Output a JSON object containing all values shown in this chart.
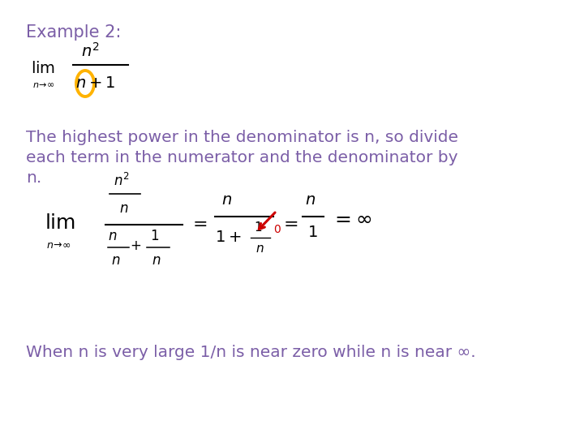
{
  "background_color": "#ffffff",
  "title_text": "Example 2:",
  "title_color": "#7B5EA7",
  "title_fontsize": 15,
  "body_color": "#7B5EA7",
  "math_color": "#000000",
  "body_fontsize": 14.5,
  "circle_color": "#FFB300",
  "arrow_color": "#CC0000",
  "body_text_line1": "The highest power in the denominator is n, so divide",
  "body_text_line2": "each term in the numerator and the denominator by",
  "body_text_line3": "n.",
  "bottom_text": "When n is very large 1/n is near zero while n is near ∞."
}
